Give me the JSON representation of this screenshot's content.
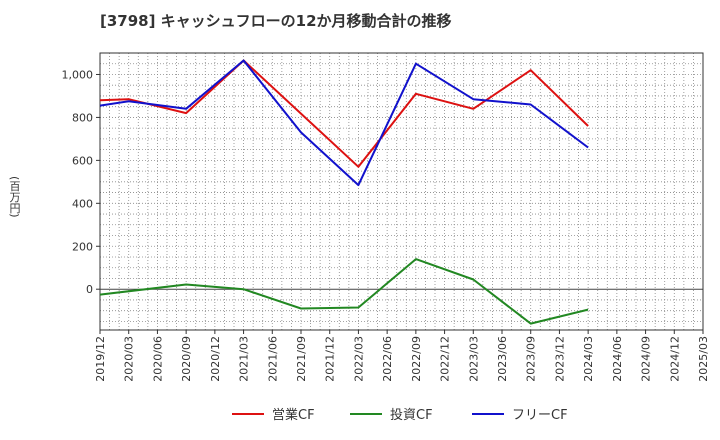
{
  "chart_data": {
    "type": "line",
    "title": "[3798]  キャッシュフローの12か月移動合計の推移",
    "xlabel": "",
    "ylabel": "(百万円)",
    "ylim": [
      -190,
      1100
    ],
    "yticks": [
      0,
      200,
      400,
      600,
      800,
      1000
    ],
    "ytick_labels": [
      "0",
      "200",
      "400",
      "600",
      "800",
      "1,000"
    ],
    "grid": true,
    "legend_position": "bottom-center",
    "x_categories": [
      "2019/12",
      "2020/03",
      "2020/06",
      "2020/09",
      "2020/12",
      "2021/03",
      "2021/06",
      "2021/09",
      "2021/12",
      "2022/03",
      "2022/06",
      "2022/09",
      "2022/12",
      "2023/03",
      "2023/06",
      "2023/09",
      "2023/12",
      "2024/03",
      "2024/06",
      "2024/09",
      "2024/12",
      "2025/03"
    ],
    "series": [
      {
        "name": "営業CF",
        "color": "#dd1111",
        "x": [
          "2019/12",
          "2020/03",
          "2020/09",
          "2021/03",
          "2022/03",
          "2022/09",
          "2023/03",
          "2023/09",
          "2024/03"
        ],
        "values": [
          880,
          885,
          820,
          1065,
          570,
          910,
          840,
          1020,
          760
        ]
      },
      {
        "name": "投資CF",
        "color": "#228822",
        "x": [
          "2019/12",
          "2020/09",
          "2021/03",
          "2021/09",
          "2022/03",
          "2022/09",
          "2023/03",
          "2023/09",
          "2024/03"
        ],
        "values": [
          -25,
          22,
          0,
          -90,
          -85,
          140,
          45,
          -160,
          -95
        ]
      },
      {
        "name": "フリーCF",
        "color": "#1111cc",
        "x": [
          "2019/12",
          "2020/03",
          "2020/09",
          "2021/03",
          "2021/09",
          "2022/03",
          "2022/09",
          "2023/03",
          "2023/09",
          "2024/03"
        ],
        "values": [
          855,
          875,
          840,
          1065,
          730,
          485,
          1050,
          885,
          860,
          660
        ]
      }
    ]
  }
}
